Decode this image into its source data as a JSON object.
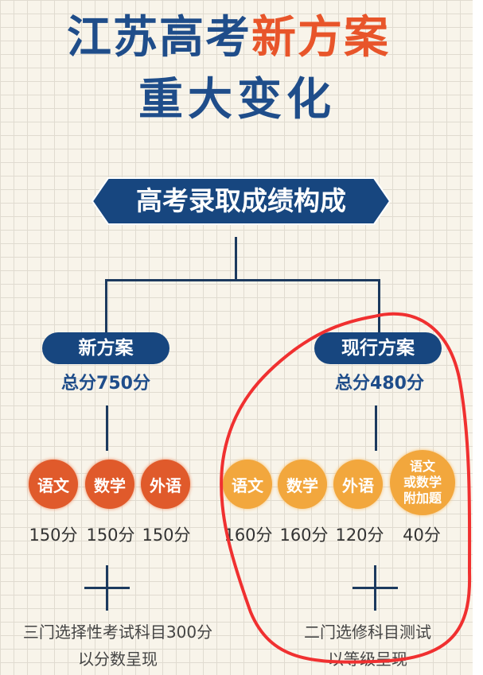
{
  "title": {
    "line1_blue": "江苏高考",
    "line1_orange": "新方案",
    "line2": "重大变化"
  },
  "banner": "高考录取成绩构成",
  "new_plan": {
    "label": "新方案",
    "total": "总分750分",
    "subjects": [
      {
        "name": "语文",
        "score": "150分"
      },
      {
        "name": "数学",
        "score": "150分"
      },
      {
        "name": "外语",
        "score": "150分"
      }
    ],
    "plus_text": [
      "三门选择性考试科目300分",
      "以分数呈现"
    ]
  },
  "current_plan": {
    "label": "现行方案",
    "total": "总分480分",
    "subjects": [
      {
        "name": "语文",
        "score": "160分"
      },
      {
        "name": "数学",
        "score": "160分"
      },
      {
        "name": "外语",
        "score": "120分"
      },
      {
        "name": "语文或数学附加题",
        "name_lines": [
          "语文",
          "或数学",
          "附加题"
        ],
        "score": "40分"
      }
    ],
    "plus_text": [
      "二门选修科目测试",
      "以等级呈现"
    ]
  },
  "colors": {
    "blue": "#1f4d8a",
    "orange": "#e8552a",
    "new_circle": "#e05a2b",
    "current_circle": "#f2a73d",
    "annotation": "#f03030"
  }
}
